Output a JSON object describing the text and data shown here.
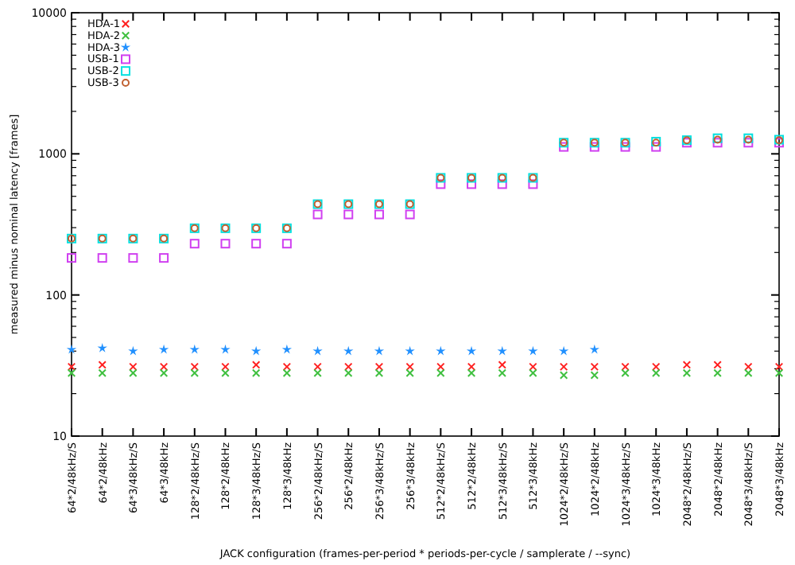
{
  "chart_data": {
    "type": "scatter",
    "xlabel": "JACK configuration (frames-per-period * periods-per-cycle / samplerate / --sync)",
    "ylabel": "measured minus nominal latency [frames]",
    "categories": [
      "64*2/48kHz/S",
      "64*2/48kHz",
      "64*3/48kHz/S",
      "64*3/48kHz",
      "128*2/48kHz/S",
      "128*2/48kHz",
      "128*3/48kHz/S",
      "128*3/48kHz",
      "256*2/48kHz/S",
      "256*2/48kHz",
      "256*3/48kHz/S",
      "256*3/48kHz",
      "512*2/48kHz/S",
      "512*2/48kHz",
      "512*3/48kHz/S",
      "512*3/48kHz",
      "1024*2/48kHz/S",
      "1024*2/48kHz",
      "1024*3/48kHz/S",
      "1024*3/48kHz",
      "2048*2/48kHz/S",
      "2048*2/48kHz",
      "2048*3/48kHz/S",
      "2048*3/48kHz"
    ],
    "log": "y",
    "ylim": [
      10,
      10000
    ],
    "yticks": [
      10,
      100,
      1000,
      10000
    ],
    "grid": false,
    "legend": "top left",
    "series": [
      {
        "name": "HDA-1",
        "color": "#ff2020",
        "marker": "cross",
        "values": [
          31,
          32,
          31,
          31,
          31,
          31,
          32,
          31,
          31,
          31,
          31,
          31,
          31,
          31,
          32,
          31,
          31,
          31,
          31,
          31,
          32,
          32,
          31,
          31
        ]
      },
      {
        "name": "HDA-2",
        "color": "#40c040",
        "marker": "cross",
        "values": [
          28,
          28,
          28,
          28,
          28,
          28,
          28,
          28,
          28,
          28,
          28,
          28,
          28,
          28,
          28,
          28,
          27,
          27,
          28,
          28,
          28,
          28,
          28,
          28
        ]
      },
      {
        "name": "HDA-3",
        "color": "#2090ff",
        "marker": "star",
        "values": [
          41,
          42,
          40,
          41,
          41,
          41,
          40,
          41,
          40,
          40,
          40,
          40,
          40,
          40,
          40,
          40,
          40,
          41,
          null,
          null,
          null,
          null,
          null,
          null
        ]
      },
      {
        "name": "USB-1",
        "color": "#d040f0",
        "marker": "square",
        "values": [
          183,
          183,
          183,
          183,
          231,
          231,
          231,
          231,
          372,
          372,
          372,
          372,
          610,
          610,
          610,
          610,
          1120,
          1120,
          1120,
          1120,
          1200,
          1200,
          1200,
          1200
        ]
      },
      {
        "name": "USB-2",
        "color": "#00e0e0",
        "marker": "square",
        "values": [
          251,
          251,
          251,
          251,
          297,
          297,
          297,
          297,
          440,
          440,
          440,
          440,
          676,
          676,
          676,
          676,
          1200,
          1200,
          1200,
          1220,
          1250,
          1290,
          1290,
          1260
        ]
      },
      {
        "name": "USB-3",
        "color": "#c06030",
        "marker": "circle",
        "values": [
          251,
          251,
          251,
          251,
          297,
          297,
          297,
          297,
          440,
          440,
          440,
          440,
          676,
          676,
          676,
          676,
          1200,
          1200,
          1200,
          1200,
          1250,
          1260,
          1260,
          1250
        ]
      }
    ]
  }
}
